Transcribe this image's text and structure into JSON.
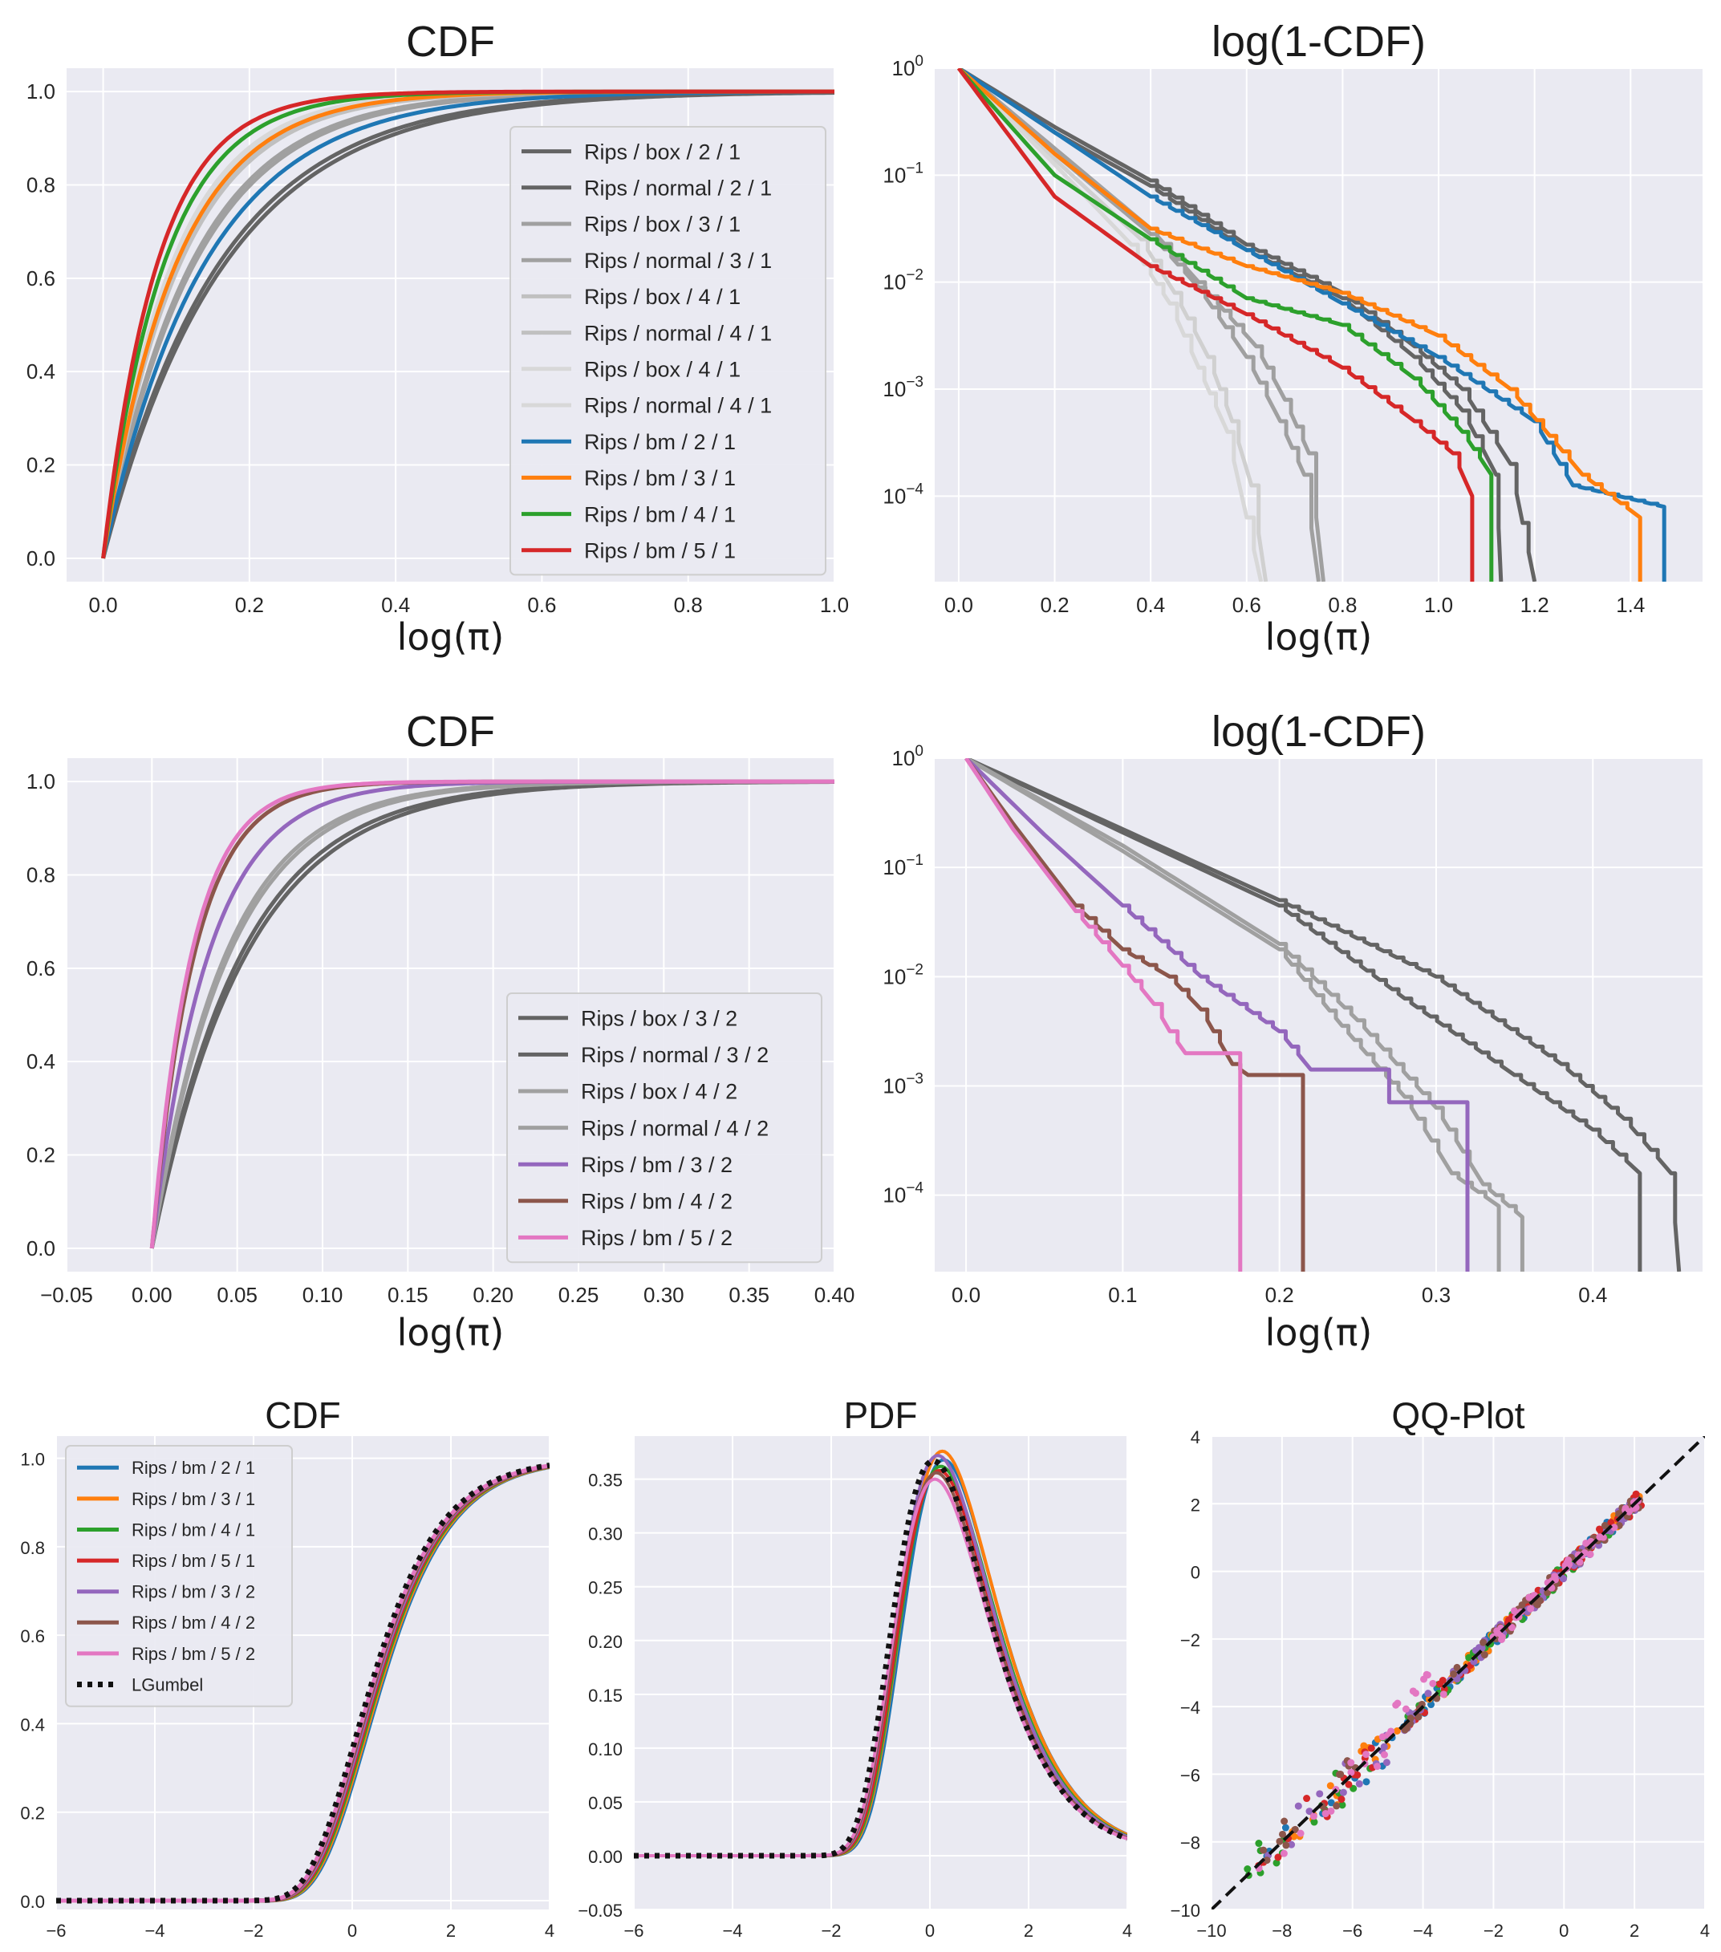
{
  "colors": {
    "background": "#eaeaf2",
    "grid": "#ffffff",
    "gray_dark": "#646464",
    "gray_mid": "#a0a0a0",
    "gray_light": "#d0d0d0",
    "blue": "#1f77b4",
    "orange": "#ff7f0e",
    "green": "#2ca02c",
    "red": "#d62728",
    "purple": "#9467bd",
    "brown": "#8c564b",
    "pink": "#e377c2",
    "black": "#111111"
  },
  "chart_data": [
    {
      "id": "p1",
      "type": "line",
      "title": "CDF",
      "xlabel": "log(π)",
      "xlim": [
        -0.05,
        1.0
      ],
      "ylim": [
        -0.05,
        1.05
      ],
      "yscale": "linear",
      "xticks": [
        "0.0",
        "0.2",
        "0.4",
        "0.6",
        "0.8",
        "1.0"
      ],
      "yticks": [
        "0.0",
        "0.2",
        "0.4",
        "0.6",
        "0.8",
        "1.0"
      ],
      "legend_position": "lower-right",
      "series": [
        {
          "name": "Rips / box / 2 / 1",
          "color": "#646464",
          "rate": 6.0
        },
        {
          "name": "Rips / normal / 2 / 1",
          "color": "#646464",
          "rate": 6.3
        },
        {
          "name": "Rips / box / 3 / 1",
          "color": "#a0a0a0",
          "rate": 8.0
        },
        {
          "name": "Rips / normal / 3 / 1",
          "color": "#a0a0a0",
          "rate": 8.3
        },
        {
          "name": "Rips / box / 4 / 1",
          "color": "#c0c0c0",
          "rate": 9.5
        },
        {
          "name": "Rips / normal / 4 / 1",
          "color": "#c0c0c0",
          "rate": 9.8
        },
        {
          "name": "Rips / box / 4 / 1",
          "color": "#d8d8d8",
          "rate": 10.3
        },
        {
          "name": "Rips / normal / 4 / 1",
          "color": "#d8d8d8",
          "rate": 10.6
        },
        {
          "name": "Rips / bm / 2 / 1",
          "color": "#1f77b4",
          "rate": 7.2
        },
        {
          "name": "Rips / bm / 3 / 1",
          "color": "#ff7f0e",
          "rate": 10.0
        },
        {
          "name": "Rips / bm / 4 / 1",
          "color": "#2ca02c",
          "rate": 12.0
        },
        {
          "name": "Rips / bm / 5 / 1",
          "color": "#d62728",
          "rate": 13.5
        }
      ]
    },
    {
      "id": "p2",
      "type": "line",
      "title": "log(1-CDF)",
      "xlabel": "log(π)",
      "xlim": [
        -0.05,
        1.55
      ],
      "ylim": [
        -4.8,
        0.0
      ],
      "yscale": "log",
      "xticks": [
        "0.0",
        "0.2",
        "0.4",
        "0.6",
        "0.8",
        "1.0",
        "1.2",
        "1.4"
      ],
      "yticks": [
        {
          "base": "10",
          "exp": "0"
        },
        {
          "base": "10",
          "exp": "−1"
        },
        {
          "base": "10",
          "exp": "−2"
        },
        {
          "base": "10",
          "exp": "−3"
        },
        {
          "base": "10",
          "exp": "−4"
        }
      ],
      "series": [
        {
          "color": "#646464",
          "pts": [
            [
              0,
              0
            ],
            [
              0.2,
              -0.55
            ],
            [
              0.4,
              -1.05
            ],
            [
              0.6,
              -1.65
            ],
            [
              0.8,
              -2.1
            ],
            [
              0.95,
              -2.6
            ],
            [
              1.05,
              -3.0
            ],
            [
              1.15,
              -3.7
            ],
            [
              1.2,
              -4.8
            ]
          ]
        },
        {
          "color": "#646464",
          "pts": [
            [
              0,
              0
            ],
            [
              0.2,
              -0.6
            ],
            [
              0.4,
              -1.1
            ],
            [
              0.6,
              -1.7
            ],
            [
              0.8,
              -2.15
            ],
            [
              0.95,
              -2.7
            ],
            [
              1.05,
              -3.2
            ],
            [
              1.12,
              -3.8
            ],
            [
              1.13,
              -4.8
            ]
          ]
        },
        {
          "color": "#a0a0a0",
          "pts": [
            [
              0,
              0
            ],
            [
              0.2,
              -0.75
            ],
            [
              0.4,
              -1.5
            ],
            [
              0.5,
              -2.0
            ],
            [
              0.62,
              -2.6
            ],
            [
              0.68,
              -3.1
            ],
            [
              0.73,
              -3.6
            ],
            [
              0.76,
              -4.8
            ]
          ]
        },
        {
          "color": "#a0a0a0",
          "pts": [
            [
              0,
              0
            ],
            [
              0.2,
              -0.8
            ],
            [
              0.4,
              -1.55
            ],
            [
              0.5,
              -2.05
            ],
            [
              0.6,
              -2.7
            ],
            [
              0.67,
              -3.3
            ],
            [
              0.72,
              -3.8
            ],
            [
              0.75,
              -4.8
            ]
          ]
        },
        {
          "color": "#d0d0d0",
          "pts": [
            [
              0,
              0
            ],
            [
              0.2,
              -0.85
            ],
            [
              0.38,
              -1.6
            ],
            [
              0.45,
              -2.1
            ],
            [
              0.52,
              -2.7
            ],
            [
              0.57,
              -3.3
            ],
            [
              0.61,
              -3.9
            ],
            [
              0.64,
              -4.8
            ]
          ]
        },
        {
          "color": "#d8d8d8",
          "pts": [
            [
              0,
              0
            ],
            [
              0.2,
              -0.9
            ],
            [
              0.36,
              -1.65
            ],
            [
              0.44,
              -2.2
            ],
            [
              0.5,
              -2.8
            ],
            [
              0.56,
              -3.4
            ],
            [
              0.6,
              -4.2
            ],
            [
              0.63,
              -4.8
            ]
          ]
        },
        {
          "color": "#1f77b4",
          "pts": [
            [
              0,
              0
            ],
            [
              0.2,
              -0.6
            ],
            [
              0.4,
              -1.2
            ],
            [
              0.6,
              -1.7
            ],
            [
              0.8,
              -2.2
            ],
            [
              1.0,
              -2.7
            ],
            [
              1.2,
              -3.3
            ],
            [
              1.28,
              -3.9
            ],
            [
              1.47,
              -4.1
            ],
            [
              1.47,
              -4.8
            ]
          ]
        },
        {
          "color": "#ff7f0e",
          "pts": [
            [
              0,
              0
            ],
            [
              0.2,
              -0.8
            ],
            [
              0.4,
              -1.5
            ],
            [
              0.6,
              -1.85
            ],
            [
              0.8,
              -2.1
            ],
            [
              1.0,
              -2.5
            ],
            [
              1.15,
              -3.0
            ],
            [
              1.3,
              -3.8
            ],
            [
              1.42,
              -4.2
            ],
            [
              1.42,
              -4.8
            ]
          ]
        },
        {
          "color": "#2ca02c",
          "pts": [
            [
              0,
              0
            ],
            [
              0.2,
              -1.0
            ],
            [
              0.4,
              -1.6
            ],
            [
              0.6,
              -2.15
            ],
            [
              0.8,
              -2.4
            ],
            [
              0.95,
              -2.9
            ],
            [
              1.05,
              -3.4
            ],
            [
              1.11,
              -3.8
            ],
            [
              1.11,
              -4.8
            ]
          ]
        },
        {
          "color": "#d62728",
          "pts": [
            [
              0,
              0
            ],
            [
              0.2,
              -1.2
            ],
            [
              0.4,
              -1.85
            ],
            [
              0.6,
              -2.3
            ],
            [
              0.8,
              -2.8
            ],
            [
              0.95,
              -3.3
            ],
            [
              1.03,
              -3.6
            ],
            [
              1.07,
              -4.0
            ],
            [
              1.07,
              -4.8
            ]
          ]
        }
      ]
    },
    {
      "id": "p3",
      "type": "line",
      "title": "CDF",
      "xlabel": "log(π)",
      "xlim": [
        -0.05,
        0.4
      ],
      "ylim": [
        -0.05,
        1.05
      ],
      "yscale": "linear",
      "xticks": [
        "−0.05",
        "0.00",
        "0.05",
        "0.10",
        "0.15",
        "0.20",
        "0.25",
        "0.30",
        "0.35",
        "0.40"
      ],
      "yticks": [
        "0.0",
        "0.2",
        "0.4",
        "0.6",
        "0.8",
        "1.0"
      ],
      "legend_position": "lower-right",
      "series": [
        {
          "name": "Rips / box / 3 / 2",
          "color": "#646464",
          "rate": 18
        },
        {
          "name": "Rips / normal / 3 / 2",
          "color": "#646464",
          "rate": 19
        },
        {
          "name": "Rips / box / 4 / 2",
          "color": "#a0a0a0",
          "rate": 22
        },
        {
          "name": "Rips / normal / 4 / 2",
          "color": "#a0a0a0",
          "rate": 23
        },
        {
          "name": "Rips / bm / 3 / 2",
          "color": "#9467bd",
          "rate": 30
        },
        {
          "name": "Rips / bm / 4 / 2",
          "color": "#8c564b",
          "rate": 40
        },
        {
          "name": "Rips / bm / 5 / 2",
          "color": "#e377c2",
          "rate": 43
        }
      ]
    },
    {
      "id": "p4",
      "type": "line",
      "title": "log(1-CDF)",
      "xlabel": "log(π)",
      "xlim": [
        -0.02,
        0.47
      ],
      "ylim": [
        -4.7,
        0.0
      ],
      "yscale": "log",
      "xticks": [
        "0.0",
        "0.1",
        "0.2",
        "0.3",
        "0.4"
      ],
      "yticks": [
        {
          "base": "10",
          "exp": "0"
        },
        {
          "base": "10",
          "exp": "−1"
        },
        {
          "base": "10",
          "exp": "−2"
        },
        {
          "base": "10",
          "exp": "−3"
        },
        {
          "base": "10",
          "exp": "−4"
        }
      ],
      "series": [
        {
          "color": "#646464",
          "pts": [
            [
              0,
              0
            ],
            [
              0.1,
              -0.65
            ],
            [
              0.2,
              -1.3
            ],
            [
              0.3,
              -2.0
            ],
            [
              0.38,
              -2.8
            ],
            [
              0.42,
              -3.3
            ],
            [
              0.45,
              -3.8
            ],
            [
              0.455,
              -4.7
            ]
          ]
        },
        {
          "color": "#646464",
          "pts": [
            [
              0,
              0
            ],
            [
              0.1,
              -0.68
            ],
            [
              0.2,
              -1.35
            ],
            [
              0.28,
              -2.2
            ],
            [
              0.35,
              -2.9
            ],
            [
              0.4,
              -3.4
            ],
            [
              0.43,
              -3.8
            ],
            [
              0.43,
              -4.7
            ]
          ]
        },
        {
          "color": "#a0a0a0",
          "pts": [
            [
              0,
              0
            ],
            [
              0.1,
              -0.8
            ],
            [
              0.2,
              -1.7
            ],
            [
              0.25,
              -2.4
            ],
            [
              0.3,
              -3.2
            ],
            [
              0.33,
              -3.9
            ],
            [
              0.355,
              -4.2
            ],
            [
              0.355,
              -4.7
            ]
          ]
        },
        {
          "color": "#a0a0a0",
          "pts": [
            [
              0,
              0
            ],
            [
              0.1,
              -0.85
            ],
            [
              0.2,
              -1.75
            ],
            [
              0.24,
              -2.45
            ],
            [
              0.28,
              -3.1
            ],
            [
              0.31,
              -3.8
            ],
            [
              0.34,
              -4.1
            ],
            [
              0.34,
              -4.7
            ]
          ]
        },
        {
          "color": "#9467bd",
          "pts": [
            [
              0,
              0
            ],
            [
              0.05,
              -0.7
            ],
            [
              0.1,
              -1.35
            ],
            [
              0.15,
              -2.0
            ],
            [
              0.2,
              -2.5
            ],
            [
              0.22,
              -2.85
            ],
            [
              0.27,
              -2.85
            ],
            [
              0.27,
              -3.15
            ],
            [
              0.32,
              -3.15
            ],
            [
              0.32,
              -4.7
            ]
          ]
        },
        {
          "color": "#8c564b",
          "pts": [
            [
              0,
              0
            ],
            [
              0.03,
              -0.6
            ],
            [
              0.07,
              -1.35
            ],
            [
              0.1,
              -1.75
            ],
            [
              0.13,
              -2.0
            ],
            [
              0.15,
              -2.3
            ],
            [
              0.17,
              -2.8
            ],
            [
              0.18,
              -2.9
            ],
            [
              0.215,
              -2.9
            ],
            [
              0.215,
              -4.7
            ]
          ]
        },
        {
          "color": "#e377c2",
          "pts": [
            [
              0,
              0
            ],
            [
              0.03,
              -0.65
            ],
            [
              0.07,
              -1.4
            ],
            [
              0.1,
              -1.9
            ],
            [
              0.12,
              -2.25
            ],
            [
              0.13,
              -2.5
            ],
            [
              0.14,
              -2.7
            ],
            [
              0.175,
              -2.7
            ],
            [
              0.175,
              -4.7
            ]
          ]
        }
      ]
    },
    {
      "id": "p5",
      "type": "line",
      "title": "CDF",
      "xlabel": "",
      "xlim": [
        -6,
        4
      ],
      "ylim": [
        -0.02,
        1.05
      ],
      "yscale": "linear",
      "xticks": [
        "−6",
        "−4",
        "−2",
        "0",
        "2",
        "4"
      ],
      "yticks": [
        "0.0",
        "0.2",
        "0.4",
        "0.6",
        "0.8",
        "1.0"
      ],
      "legend_position": "top-left",
      "series": [
        {
          "name": "Rips / bm / 2 / 1",
          "color": "#1f77b4"
        },
        {
          "name": "Rips / bm / 3 / 1",
          "color": "#ff7f0e"
        },
        {
          "name": "Rips / bm / 4 / 1",
          "color": "#2ca02c"
        },
        {
          "name": "Rips / bm / 5 / 1",
          "color": "#d62728"
        },
        {
          "name": "Rips / bm / 3 / 2",
          "color": "#9467bd"
        },
        {
          "name": "Rips / bm / 4 / 2",
          "color": "#8c564b"
        },
        {
          "name": "Rips / bm / 5 / 2",
          "color": "#e377c2"
        },
        {
          "name": "LGumbel",
          "color": "#111111",
          "dotted": true
        }
      ]
    },
    {
      "id": "p6",
      "type": "line",
      "title": "PDF",
      "xlabel": "",
      "xlim": [
        -6,
        4
      ],
      "ylim": [
        -0.05,
        0.39
      ],
      "yscale": "linear",
      "xticks": [
        "−6",
        "−4",
        "−2",
        "0",
        "2",
        "4"
      ],
      "yticks": [
        "−0.05",
        "0.00",
        "0.05",
        "0.10",
        "0.15",
        "0.20",
        "0.25",
        "0.30",
        "0.35"
      ],
      "series": [
        {
          "color": "#1f77b4",
          "peak": 0.368
        },
        {
          "color": "#ff7f0e",
          "peak": 0.376
        },
        {
          "color": "#2ca02c",
          "peak": 0.362
        },
        {
          "color": "#d62728",
          "peak": 0.358
        },
        {
          "color": "#9467bd",
          "peak": 0.372
        },
        {
          "color": "#8c564b",
          "peak": 0.356
        },
        {
          "color": "#e377c2",
          "peak": 0.35
        },
        {
          "color": "#111111",
          "peak": 0.367,
          "dotted": true
        }
      ]
    },
    {
      "id": "p7",
      "type": "scatter",
      "title": "QQ-Plot",
      "xlabel": "",
      "xlim": [
        -10,
        4
      ],
      "ylim": [
        -10,
        4
      ],
      "yscale": "linear",
      "xticks": [
        "−10",
        "−8",
        "−6",
        "−4",
        "−2",
        "0",
        "2",
        "4"
      ],
      "yticks": [
        "−10",
        "−8",
        "−6",
        "−4",
        "−2",
        "0",
        "2",
        "4"
      ],
      "reference_line": {
        "x": [
          -10,
          4
        ],
        "y": [
          -10,
          4
        ],
        "color": "#111111",
        "dashed": true
      },
      "series": [
        {
          "color": "#1f77b4"
        },
        {
          "color": "#ff7f0e"
        },
        {
          "color": "#2ca02c"
        },
        {
          "color": "#d62728"
        },
        {
          "color": "#9467bd"
        },
        {
          "color": "#8c564b"
        },
        {
          "color": "#e377c2"
        }
      ]
    }
  ]
}
